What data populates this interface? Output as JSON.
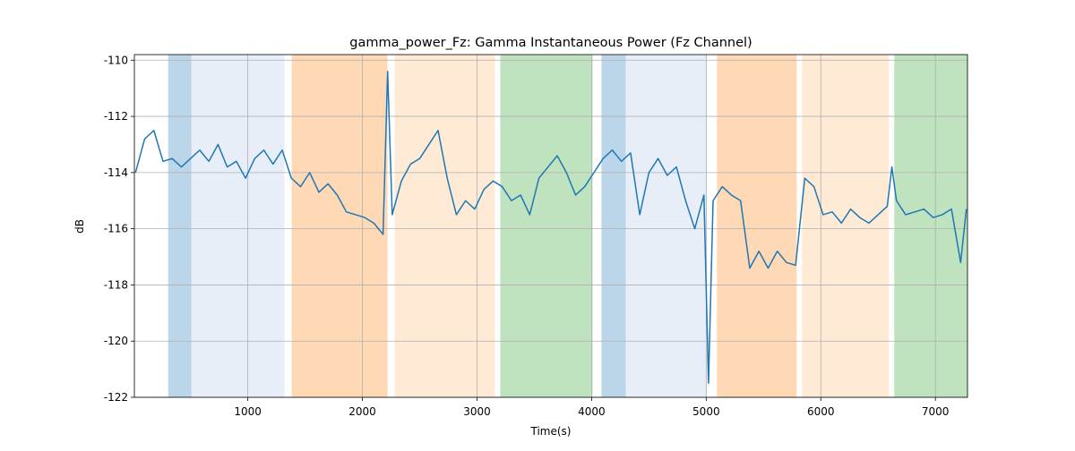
{
  "chart_data": {
    "type": "line",
    "title": "gamma_power_Fz: Gamma Instantaneous Power (Fz Channel)",
    "x_label": "Time(s)",
    "y_label": "dB",
    "xlim": [
      10,
      7280
    ],
    "ylim": [
      -122,
      -109.8
    ],
    "xticks": [
      1000,
      2000,
      3000,
      4000,
      5000,
      6000,
      7000
    ],
    "yticks": [
      -122,
      -120,
      -118,
      -116,
      -114,
      -112,
      -110
    ],
    "grid": true,
    "spans": [
      {
        "start": 305,
        "end": 508,
        "color": "#1f77b4",
        "alpha": 0.3
      },
      {
        "start": 508,
        "end": 1320,
        "color": "#aec7e8",
        "alpha": 0.3
      },
      {
        "start": 1383,
        "end": 2219,
        "color": "#ff7f0e",
        "alpha": 0.3
      },
      {
        "start": 2281,
        "end": 3156,
        "color": "#ffbb78",
        "alpha": 0.3
      },
      {
        "start": 3203,
        "end": 4008,
        "color": "#2ca02c",
        "alpha": 0.3
      },
      {
        "start": 4086,
        "end": 4297,
        "color": "#1f77b4",
        "alpha": 0.3
      },
      {
        "start": 4297,
        "end": 5008,
        "color": "#aec7e8",
        "alpha": 0.3
      },
      {
        "start": 5094,
        "end": 5789,
        "color": "#ff7f0e",
        "alpha": 0.3
      },
      {
        "start": 5836,
        "end": 6594,
        "color": "#ffbb78",
        "alpha": 0.3
      },
      {
        "start": 6641,
        "end": 7280,
        "color": "#2ca02c",
        "alpha": 0.3
      }
    ],
    "x": [
      20,
      100,
      180,
      260,
      340,
      420,
      500,
      580,
      660,
      740,
      820,
      900,
      980,
      1060,
      1140,
      1220,
      1300,
      1380,
      1460,
      1540,
      1620,
      1700,
      1780,
      1860,
      1940,
      2020,
      2100,
      2180,
      2220,
      2260,
      2340,
      2420,
      2500,
      2580,
      2660,
      2740,
      2820,
      2900,
      2980,
      3060,
      3140,
      3220,
      3300,
      3380,
      3460,
      3540,
      3620,
      3700,
      3780,
      3860,
      3940,
      4020,
      4100,
      4180,
      4260,
      4340,
      4420,
      4500,
      4580,
      4660,
      4740,
      4820,
      4900,
      4980,
      5020,
      5060,
      5140,
      5220,
      5300,
      5380,
      5460,
      5540,
      5620,
      5700,
      5780,
      5860,
      5940,
      6020,
      6100,
      6180,
      6260,
      6340,
      6420,
      6500,
      6580,
      6620,
      6660,
      6740,
      6820,
      6900,
      6980,
      7060,
      7140,
      7220,
      7270
    ],
    "series": [
      {
        "color": "#1f77b4",
        "values": [
          -114,
          -112.8,
          -112.5,
          -113.6,
          -113.5,
          -113.8,
          -113.5,
          -113.2,
          -113.6,
          -113,
          -113.8,
          -113.6,
          -114.2,
          -113.5,
          -113.2,
          -113.7,
          -113.2,
          -114.2,
          -114.5,
          -114,
          -114.7,
          -114.4,
          -114.8,
          -115.4,
          -115.5,
          -115.6,
          -115.8,
          -116.2,
          -110.4,
          -115.5,
          -114.3,
          -113.7,
          -113.5,
          -113,
          -112.5,
          -114.2,
          -115.5,
          -115,
          -115.3,
          -114.6,
          -114.3,
          -114.5,
          -115,
          -114.8,
          -115.5,
          -114.2,
          -113.8,
          -113.4,
          -114,
          -114.8,
          -114.5,
          -114,
          -113.5,
          -113.2,
          -113.6,
          -113.3,
          -115.5,
          -114,
          -113.5,
          -114.1,
          -113.8,
          -115,
          -116,
          -114.8,
          -121.5,
          -115,
          -114.5,
          -114.8,
          -115,
          -117.4,
          -116.8,
          -117.4,
          -116.8,
          -117.2,
          -117.3,
          -114.2,
          -114.5,
          -115.5,
          -115.4,
          -115.8,
          -115.3,
          -115.6,
          -115.8,
          -115.5,
          -115.2,
          -113.8,
          -115,
          -115.5,
          -115.4,
          -115.3,
          -115.6,
          -115.5,
          -115.3,
          -117.2,
          -115.3
        ]
      }
    ]
  }
}
